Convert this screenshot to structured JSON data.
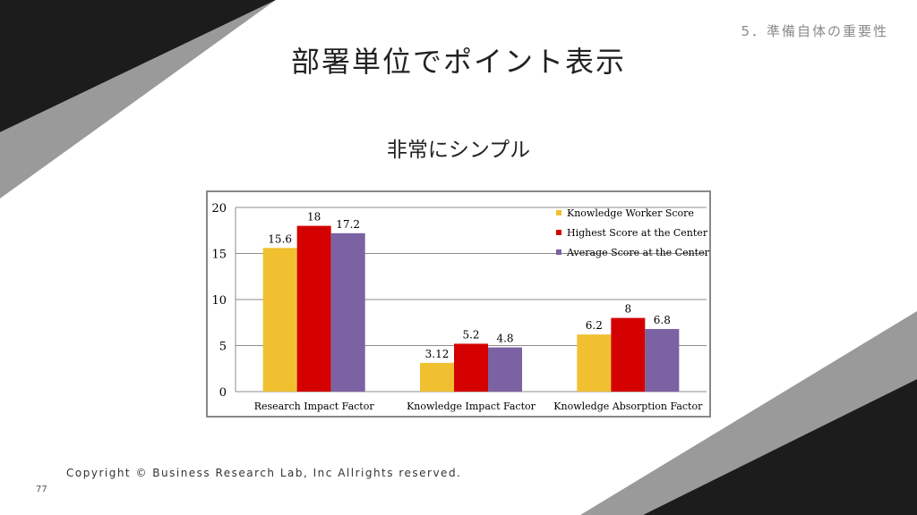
{
  "slide": {
    "section_label": "5．準備自体の重要性",
    "title": "部署単位でポイント表示",
    "subtitle": "非常にシンプル",
    "copyright": "Copyright © Business Research Lab, Inc Allrights reserved.",
    "page_number": "77"
  },
  "colors": {
    "decor_dark": "#1c1c1c",
    "decor_gray": "#9a9a9a",
    "series_yellow": "#f0c030",
    "series_red": "#d40000",
    "series_purple": "#7b62a3"
  },
  "chart_data": {
    "type": "bar",
    "categories": [
      "Research Impact Factor",
      "Knowledge Impact Factor",
      "Knowledge Absorption Factor"
    ],
    "series": [
      {
        "name": "Knowledge Worker Score",
        "values": [
          15.6,
          3.12,
          6.2
        ],
        "labels": [
          "15.6",
          "3.12",
          "6.2"
        ],
        "color": "#f0c030"
      },
      {
        "name": "Highest Score at the Center",
        "values": [
          18,
          5.2,
          8
        ],
        "labels": [
          "18",
          "5.2",
          "8"
        ],
        "color": "#d40000"
      },
      {
        "name": "Average Score at the Center",
        "values": [
          17.2,
          4.8,
          6.8
        ],
        "labels": [
          "17.2",
          "4.8",
          "6.8"
        ],
        "color": "#7b62a3"
      }
    ],
    "yticks": [
      "0",
      "5",
      "10",
      "15",
      "20"
    ],
    "ylim": [
      0,
      20
    ],
    "grid": true,
    "legend": "top-right"
  }
}
